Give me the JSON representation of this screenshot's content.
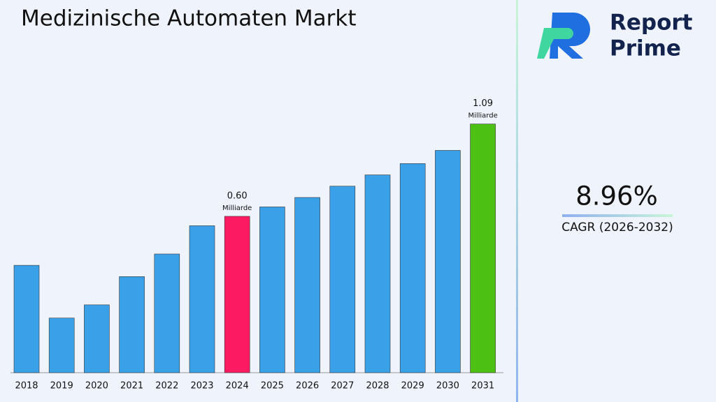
{
  "chart_data": {
    "type": "bar",
    "title": "Medizinische Automaten Markt",
    "categories": [
      "2018",
      "2019",
      "2020",
      "2021",
      "2022",
      "2023",
      "2024",
      "2025",
      "2026",
      "2027",
      "2028",
      "2029",
      "2030",
      "2031"
    ],
    "values": [
      0.34,
      0.06,
      0.13,
      0.28,
      0.4,
      0.55,
      0.6,
      0.65,
      0.7,
      0.76,
      0.82,
      0.88,
      0.95,
      1.09
    ],
    "value_labels": [
      null,
      null,
      null,
      null,
      null,
      null,
      "0.60",
      null,
      null,
      null,
      null,
      null,
      null,
      "1.09"
    ],
    "value_unit": "Milliarde",
    "colors": [
      "#3aa0e8",
      "#3aa0e8",
      "#3aa0e8",
      "#3aa0e8",
      "#3aa0e8",
      "#3aa0e8",
      "#fc1a63",
      "#3aa0e8",
      "#3aa0e8",
      "#3aa0e8",
      "#3aa0e8",
      "#3aa0e8",
      "#3aa0e8",
      "#4cc013"
    ],
    "ylim": [
      -0.23,
      1.2
    ]
  },
  "brand": {
    "line1": "Report",
    "line2": "Prime"
  },
  "cagr": {
    "value": "8.96%",
    "label": "CAGR (2026-2032)"
  }
}
